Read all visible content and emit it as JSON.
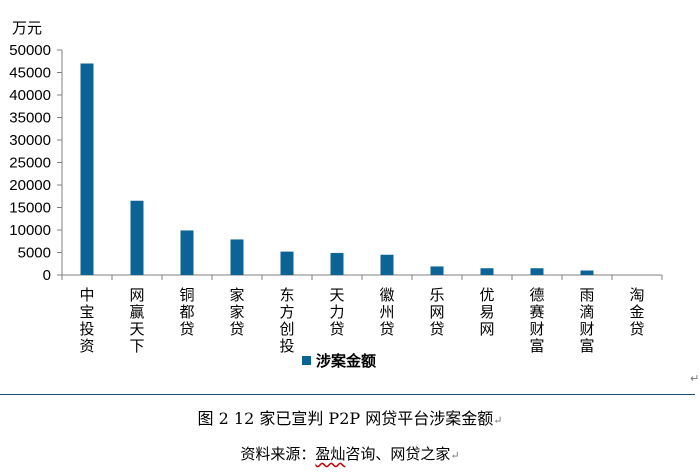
{
  "chart_data": {
    "type": "bar",
    "unit_label": "万元",
    "categories": [
      "中宝投资",
      "网赢天下",
      "铜都贷",
      "家家贷",
      "东方创投",
      "天力贷",
      "徽州贷",
      "乐网贷",
      "优易网",
      "德赛财富",
      "雨滴财富",
      "淘金贷"
    ],
    "series": [
      {
        "name": "涉案金额",
        "values": [
          47000,
          16500,
          9900,
          7900,
          5200,
          4900,
          4500,
          1900,
          1500,
          1500,
          1000,
          0
        ]
      }
    ],
    "ylim": [
      0,
      50000
    ],
    "yticks": [
      0,
      5000,
      10000,
      15000,
      20000,
      25000,
      30000,
      35000,
      40000,
      45000,
      50000
    ],
    "legend": "bottom",
    "bar_color": "#0b6396"
  },
  "figure": {
    "caption_prefix": "图 2 ",
    "caption_number": "12",
    "caption_text": " 家已宣判 P2P 网贷平台涉案金额",
    "source_label": "资料来源：",
    "source_a": "盈灿",
    "source_b": "咨询、网贷之家",
    "para_mark": "↵"
  }
}
